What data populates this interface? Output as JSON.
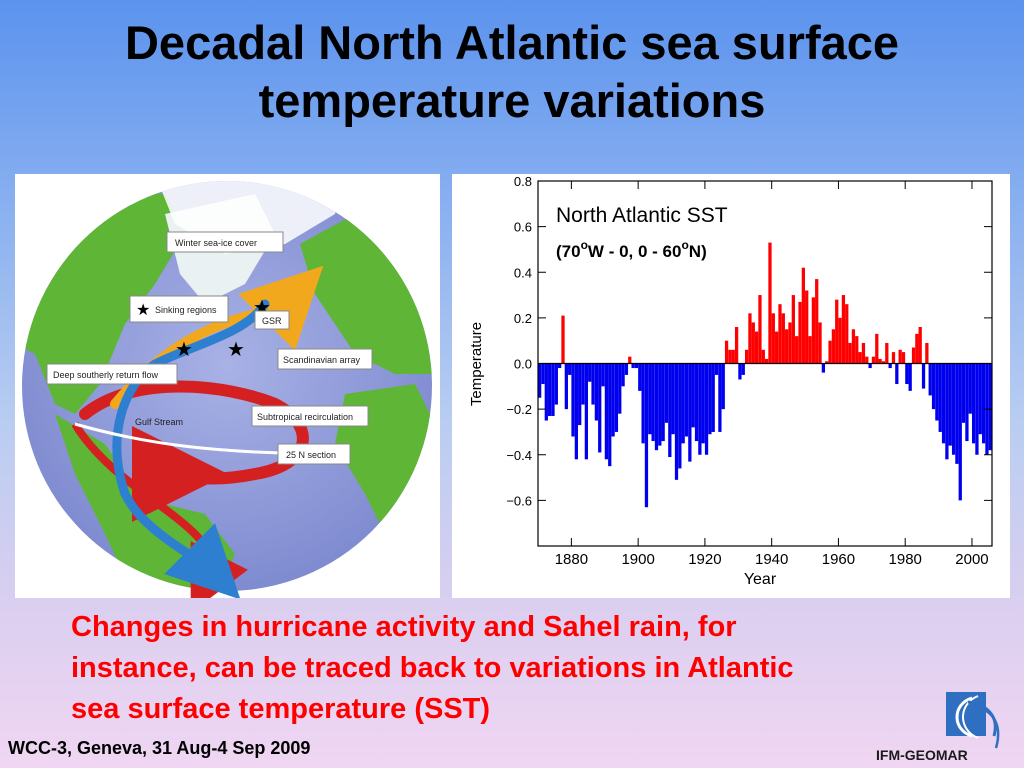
{
  "title": {
    "line1": "Decadal North Atlantic sea surface",
    "line2": "temperature variations"
  },
  "map": {
    "labels": {
      "winter_sea_ice": "Winter sea-ice cover",
      "sinking_regions": "Sinking regions",
      "gsr": "GSR",
      "scandinavian_array": "Scandinavian array",
      "deep_return_flow": "Deep southerly return flow",
      "gulf_stream": "Gulf Stream",
      "subtropical_recirculation": "Subtropical recirculation",
      "section_25n": "25 N section"
    },
    "colors": {
      "ocean": "#8f9ad8",
      "land": "#5fb536",
      "gulf_stream": "#d42020",
      "return_flow": "#2e7fd0",
      "surface_warm": "#f2a81d",
      "section": "#ffffff"
    }
  },
  "chart_data": {
    "type": "bar",
    "title": "North Atlantic SST",
    "subtitle_parts": [
      "(70",
      "o",
      "W - 0, 0 - 60",
      "o",
      "N)"
    ],
    "xlabel": "Year",
    "ylabel": "Temperature",
    "xlim": [
      1870,
      2006
    ],
    "ylim": [
      -0.8,
      0.8
    ],
    "xticks": [
      1880,
      1900,
      1920,
      1940,
      1960,
      1980,
      2000
    ],
    "yticks": [
      -0.6,
      -0.4,
      -0.2,
      0.0,
      0.2,
      0.4,
      0.6,
      0.8
    ],
    "ytick_labels": [
      "−0.6",
      "−0.4",
      "−0.2",
      "0.0",
      "0.2",
      "0.4",
      "0.6",
      "0.8"
    ],
    "colors": {
      "positive": "#ff0000",
      "negative": "#0000ee"
    },
    "x_start": 1870,
    "values": [
      -0.15,
      -0.09,
      -0.25,
      -0.23,
      -0.23,
      -0.18,
      -0.02,
      0.21,
      -0.2,
      -0.05,
      -0.32,
      -0.42,
      -0.27,
      -0.18,
      -0.42,
      -0.08,
      -0.18,
      -0.25,
      -0.39,
      -0.1,
      -0.42,
      -0.45,
      -0.32,
      -0.3,
      -0.22,
      -0.1,
      -0.05,
      0.03,
      -0.02,
      -0.02,
      -0.12,
      -0.35,
      -0.63,
      -0.31,
      -0.34,
      -0.38,
      -0.36,
      -0.34,
      -0.26,
      -0.41,
      -0.31,
      -0.51,
      -0.46,
      -0.35,
      -0.32,
      -0.43,
      -0.28,
      -0.34,
      -0.4,
      -0.35,
      -0.4,
      -0.31,
      -0.3,
      -0.05,
      -0.3,
      -0.2,
      0.1,
      0.06,
      0.06,
      0.16,
      -0.07,
      -0.05,
      0.06,
      0.22,
      0.18,
      0.14,
      0.3,
      0.06,
      0.02,
      0.53,
      0.22,
      0.14,
      0.26,
      0.22,
      0.15,
      0.18,
      0.3,
      0.12,
      0.27,
      0.42,
      0.32,
      0.12,
      0.29,
      0.37,
      0.18,
      -0.04,
      0.01,
      0.1,
      0.15,
      0.28,
      0.2,
      0.3,
      0.26,
      0.09,
      0.15,
      0.12,
      0.05,
      0.09,
      0.03,
      -0.02,
      0.03,
      0.13,
      0.02,
      0.01,
      0.09,
      -0.02,
      0.05,
      -0.09,
      0.06,
      0.05,
      -0.09,
      -0.12,
      0.07,
      0.13,
      0.16,
      -0.11,
      0.09,
      -0.14,
      -0.2,
      -0.25,
      -0.3,
      -0.35,
      -0.42,
      -0.36,
      -0.4,
      -0.44,
      -0.6,
      -0.26,
      -0.34,
      -0.22,
      -0.35,
      -0.4,
      -0.31,
      -0.35,
      -0.4,
      -0.38
    ]
  },
  "caption": {
    "line1": "Changes in hurricane activity and Sahel rain, for",
    "line2": "instance, can be traced back to variations in Atlantic",
    "line3": "sea surface temperature (SST)"
  },
  "footer": "WCC-3, Geneva, 31 Aug-4 Sep 2009",
  "logo_text": "IFM-GEOMAR"
}
